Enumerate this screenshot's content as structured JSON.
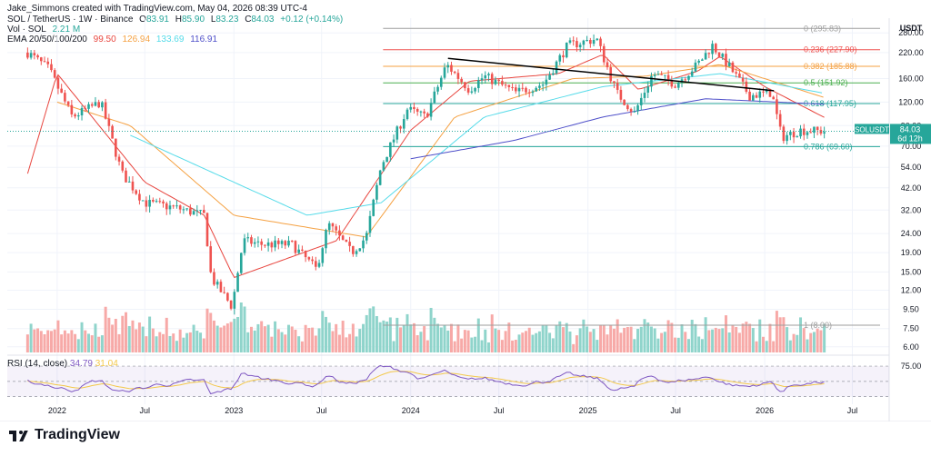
{
  "header": {
    "created_by": "Jake_Simmons created with TradingView.com, May 04, 2026 08:39 UTC-4",
    "symbol_line": "SOL / TetherUS · 1W · Binance",
    "ohlc": {
      "o_label": "O",
      "o": "83.91",
      "h_label": "H",
      "h": "85.90",
      "l_label": "L",
      "l": "83.23",
      "c_label": "C",
      "c": "84.03",
      "change": "+0.12 (+0.14%)"
    },
    "vol_line": "Vol · SOL",
    "vol_value": "2.21 M",
    "ema_line": "EMA 20/50/100/200",
    "ema_values": [
      "99.50",
      "126.94",
      "133.69",
      "116.91"
    ]
  },
  "colors": {
    "up": "#26a69a",
    "down": "#ef5350",
    "up_vol": "#8fd4cb",
    "down_vol": "#f7a9a7",
    "ema20": "#e8463f",
    "ema50": "#f5a142",
    "ema100": "#55dbe9",
    "ema200": "#4e4fc9",
    "trendline": "#000000",
    "fib0": "#9e9e9e",
    "fib236": "#ef5350",
    "fib382": "#f5a142",
    "fib5": "#4caf50",
    "fib618": "#26a69a",
    "fib786": "#26a69a",
    "fib1": "#9e9e9e",
    "rsi": "#7e57c2",
    "rsi_ma": "#f3c84a",
    "price_tag": "#26a69a"
  },
  "chart_data": {
    "type": "candlestick",
    "timeframe": "1W",
    "y_scale": "log",
    "currency_label": "USDT",
    "y_ticks": [
      "280.00",
      "220.00",
      "160.00",
      "120.00",
      "90.00",
      "70.00",
      "54.00",
      "42.00",
      "32.00",
      "24.00",
      "19.00",
      "15.00",
      "12.00",
      "9.50",
      "7.50",
      "6.00"
    ],
    "x_ticks": [
      "2022",
      "Jul",
      "2023",
      "Jul",
      "2024",
      "Jul",
      "2025",
      "Jul",
      "2026",
      "Jul"
    ],
    "price_anchors": [
      [
        "2021-11-01",
        220
      ],
      [
        "2021-12-15",
        180
      ],
      [
        "2022-02-01",
        100
      ],
      [
        "2022-04-01",
        120
      ],
      [
        "2022-05-15",
        50
      ],
      [
        "2022-07-01",
        35
      ],
      [
        "2022-09-01",
        33
      ],
      [
        "2022-11-01",
        30
      ],
      [
        "2022-11-15",
        14
      ],
      [
        "2022-12-28",
        9.8
      ],
      [
        "2023-01-20",
        22
      ],
      [
        "2023-03-01",
        21
      ],
      [
        "2023-05-01",
        21
      ],
      [
        "2023-06-20",
        15.5
      ],
      [
        "2023-07-15",
        27
      ],
      [
        "2023-09-01",
        19
      ],
      [
        "2023-10-01",
        23
      ],
      [
        "2023-11-01",
        55
      ],
      [
        "2023-12-25",
        110
      ],
      [
        "2024-02-01",
        100
      ],
      [
        "2024-03-15",
        190
      ],
      [
        "2024-05-01",
        140
      ],
      [
        "2024-06-01",
        165
      ],
      [
        "2024-08-05",
        135
      ],
      [
        "2024-10-01",
        150
      ],
      [
        "2024-11-20",
        240
      ],
      [
        "2025-01-19",
        260
      ],
      [
        "2025-03-01",
        135
      ],
      [
        "2025-04-07",
        105
      ],
      [
        "2025-05-15",
        170
      ],
      [
        "2025-07-01",
        150
      ],
      [
        "2025-08-15",
        190
      ],
      [
        "2025-09-15",
        240
      ],
      [
        "2025-10-20",
        185
      ],
      [
        "2025-12-01",
        130
      ],
      [
        "2026-01-15",
        135
      ],
      [
        "2026-02-05",
        78
      ],
      [
        "2026-03-15",
        85
      ],
      [
        "2026-05-04",
        84.03
      ]
    ],
    "fib_levels": [
      {
        "label": "0 (295.83)",
        "value": 295.83
      },
      {
        "label": "0.236 (227.90)",
        "value": 227.9
      },
      {
        "label": "0.382 (185.88)",
        "value": 185.88
      },
      {
        "label": "0.5 (151.92)",
        "value": 151.92
      },
      {
        "label": "0.618 (117.95)",
        "value": 117.95
      },
      {
        "label": "0.786 (69.60)",
        "value": 69.6
      },
      {
        "label": "1 (8.00)",
        "value": 8.0
      }
    ],
    "trendline": {
      "start": [
        "2024-03-18",
        205
      ],
      "end": [
        "2026-01-20",
        138
      ]
    },
    "ema_anchors": {
      "ema20": [
        [
          "2021-11-01",
          50
        ],
        [
          "2022-01-01",
          170
        ],
        [
          "2022-07-01",
          45
        ],
        [
          "2022-11-01",
          30
        ],
        [
          "2023-01-01",
          14
        ],
        [
          "2023-08-01",
          22
        ],
        [
          "2024-01-01",
          85
        ],
        [
          "2024-05-01",
          155
        ],
        [
          "2024-11-01",
          170
        ],
        [
          "2025-02-01",
          215
        ],
        [
          "2025-04-15",
          140
        ],
        [
          "2025-08-15",
          175
        ],
        [
          "2025-10-01",
          210
        ],
        [
          "2026-01-01",
          145
        ],
        [
          "2026-05-04",
          99.5
        ]
      ],
      "ema50": [
        [
          "2022-01-01",
          120
        ],
        [
          "2022-06-01",
          90
        ],
        [
          "2023-01-01",
          30
        ],
        [
          "2023-10-01",
          23
        ],
        [
          "2024-04-01",
          100
        ],
        [
          "2024-12-01",
          160
        ],
        [
          "2025-05-01",
          165
        ],
        [
          "2025-10-01",
          190
        ],
        [
          "2026-05-04",
          126.94
        ]
      ],
      "ema100": [
        [
          "2022-06-01",
          80
        ],
        [
          "2023-06-01",
          30
        ],
        [
          "2023-11-01",
          35
        ],
        [
          "2024-06-01",
          100
        ],
        [
          "2025-02-01",
          145
        ],
        [
          "2025-10-01",
          170
        ],
        [
          "2026-05-04",
          133.69
        ]
      ],
      "ema200": [
        [
          "2024-01-01",
          60
        ],
        [
          "2024-08-01",
          75
        ],
        [
          "2025-02-01",
          100
        ],
        [
          "2025-09-01",
          125
        ],
        [
          "2026-05-04",
          116.91
        ]
      ]
    },
    "last_price": {
      "label": "SOLUSDT",
      "value": "84.03",
      "countdown": "6d 12h"
    },
    "rsi": {
      "label": "RSI (14, close)",
      "value": "34.79",
      "ma_value": "31.04",
      "levels": [
        "75.00"
      ]
    }
  },
  "branding": {
    "logo_text": "TradingView"
  }
}
